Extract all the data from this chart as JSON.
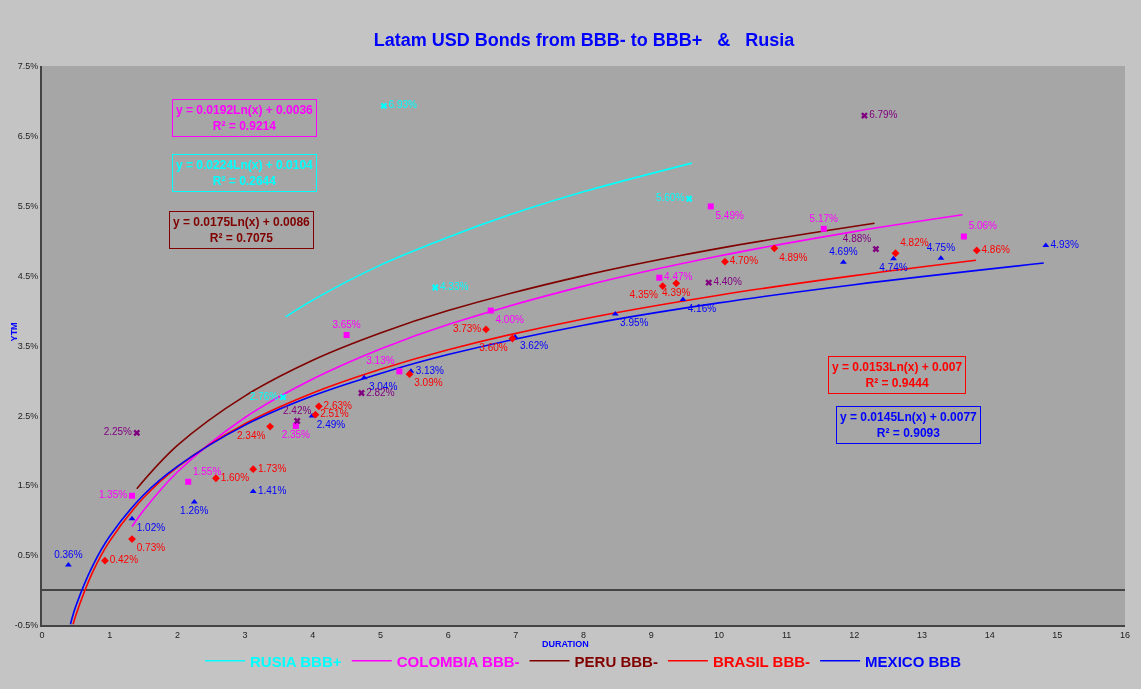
{
  "chart_data": {
    "type": "scatter",
    "title": "Latam USD Bonds from BBB- to BBB+   &   Rusia",
    "xlabel": "DURATION",
    "ylabel": "YTM",
    "xlim": [
      0,
      16
    ],
    "xticks": [
      0,
      1,
      2,
      3,
      4,
      5,
      6,
      7,
      8,
      9,
      10,
      11,
      12,
      13,
      14,
      15,
      16
    ],
    "ylim": [
      -0.5,
      7.5
    ],
    "yticks": [
      {
        "value": -0.5,
        "label": "-0.5%"
      },
      {
        "value": 0.5,
        "label": "0.5%"
      },
      {
        "value": 1.5,
        "label": "1.5%"
      },
      {
        "value": 2.5,
        "label": "2.5%"
      },
      {
        "value": 3.5,
        "label": "3.5%"
      },
      {
        "value": 4.5,
        "label": "4.5%"
      },
      {
        "value": 5.5,
        "label": "5.5%"
      },
      {
        "value": 6.5,
        "label": "6.5%"
      },
      {
        "value": 7.5,
        "label": "7.5%"
      }
    ],
    "grid": false,
    "legend": "bottom",
    "annotations": [
      "y = 0.0192Ln(x) + 0.0036\nR² = 0.9214",
      "y = 0.0224Ln(x) + 0.0104\nR² = 0.2644",
      "y = 0.0175Ln(x) + 0.0086\nR² = 0.7075",
      "y = 0.0153Ln(x) + 0.007\nR² = 0.9444",
      "y = 0.0145Ln(x) + 0.0077\nR² = 0.9093"
    ],
    "series": [
      {
        "name": "RUSIA BBB+",
        "type": "line",
        "color": "#00ffff",
        "marker": "none",
        "x": [
          3.6,
          4,
          5,
          6,
          7,
          8,
          9.6
        ],
        "values": [
          3.91,
          4.15,
          4.65,
          5.05,
          5.4,
          5.7,
          6.11
        ]
      },
      {
        "name": "COLOMBIA BBB-",
        "type": "line",
        "color": "#ff00ff",
        "marker": "none",
        "x": [
          1.33,
          1.5,
          2,
          3,
          4,
          5,
          6,
          8,
          10,
          12,
          13.6
        ],
        "values": [
          0.91,
          1.14,
          1.69,
          2.47,
          3.02,
          3.45,
          3.8,
          4.35,
          4.78,
          5.13,
          5.37
        ]
      },
      {
        "name": "PERU BBB-",
        "type": "line",
        "color": "#800000",
        "marker": "none",
        "x": [
          1.4,
          2,
          3,
          4,
          5,
          6,
          8,
          10,
          12.3
        ],
        "values": [
          1.45,
          2.07,
          2.78,
          3.29,
          3.68,
          4.0,
          4.5,
          4.89,
          5.25
        ]
      },
      {
        "name": "BRASIL BBB-",
        "type": "line",
        "color": "#ff0000",
        "marker": "none",
        "x": [
          0.46,
          0.5,
          0.75,
          1,
          1.5,
          2,
          3,
          4,
          5,
          6,
          8,
          10,
          12,
          13.8
        ],
        "values": [
          -0.49,
          -0.36,
          0.26,
          0.7,
          1.32,
          1.76,
          2.38,
          2.82,
          3.16,
          3.44,
          3.88,
          4.22,
          4.5,
          4.72
        ]
      },
      {
        "name": "MEXICO BBB",
        "type": "line",
        "color": "#0000ff",
        "marker": "none",
        "x": [
          0.42,
          0.5,
          0.75,
          1,
          1.5,
          2,
          3,
          4,
          5,
          6,
          8,
          10,
          12,
          14.8
        ],
        "values": [
          -0.49,
          -0.23,
          0.35,
          0.77,
          1.36,
          1.77,
          2.36,
          2.78,
          3.1,
          3.37,
          3.79,
          4.11,
          4.37,
          4.68
        ]
      },
      {
        "type": "scatter",
        "color": "#0000ff",
        "marker": "triangle",
        "x": [
          0.39,
          1.33,
          2.25,
          3.12,
          3.99,
          4.76,
          5.45,
          6.99,
          8.47,
          9.47,
          11.84,
          12.58,
          13.28,
          14.83
        ],
        "values": [
          0.36,
          1.02,
          1.26,
          1.41,
          2.49,
          3.04,
          3.13,
          3.62,
          3.95,
          4.16,
          4.69,
          4.74,
          4.75,
          4.93
        ],
        "value_labels": [
          "0.36%",
          "1.02%",
          "1.26%",
          "1.41%",
          "2.49%",
          "3.04%",
          "3.13%",
          "3.62%",
          "3.95%",
          "4.16%",
          "4.69%",
          "4.74%",
          "4.75%",
          "4.93%"
        ]
      },
      {
        "type": "scatter",
        "color": "#ff0000",
        "marker": "diamond",
        "x": [
          0.93,
          1.33,
          2.57,
          3.12,
          3.37,
          4.04,
          4.09,
          5.43,
          6.95,
          6.56,
          9.17,
          9.37,
          10.09,
          10.82,
          12.61,
          13.81
        ],
        "values": [
          0.42,
          0.73,
          1.6,
          1.73,
          2.34,
          2.51,
          2.63,
          3.09,
          3.6,
          3.73,
          4.35,
          4.39,
          4.7,
          4.89,
          4.82,
          4.86
        ],
        "value_labels": [
          "0.42%",
          "0.73%",
          "1.60%",
          "1.73%",
          "2.34%",
          "2.51%",
          "2.63%",
          "3.09%",
          "3.60%",
          "3.73%",
          "4.35%",
          "4.39%",
          "4.70%",
          "4.89%",
          "4.82%",
          "4.86%"
        ]
      },
      {
        "type": "scatter",
        "color": "#ff00ff",
        "marker": "square",
        "x": [
          1.33,
          2.16,
          3.75,
          5.28,
          4.5,
          6.63,
          9.12,
          9.88,
          11.55,
          13.62
        ],
        "values": [
          1.35,
          1.55,
          2.35,
          3.13,
          3.65,
          4.0,
          4.47,
          5.49,
          5.17,
          5.06
        ],
        "value_labels": [
          "1.35%",
          "1.55%",
          "2.35%",
          "3.13%",
          "3.65%",
          "4.00%",
          "4.47%",
          "5.49%",
          "5.17%",
          "5.06%"
        ]
      },
      {
        "type": "scatter",
        "color": "#800080",
        "marker": "cross",
        "x": [
          1.4,
          3.77,
          4.72,
          9.85,
          12.32,
          12.15
        ],
        "values": [
          2.25,
          2.42,
          2.82,
          4.4,
          4.88,
          6.79
        ],
        "value_labels": [
          "2.25%",
          "2.42%",
          "2.82%",
          "4.40%",
          "4.88%",
          "6.79%"
        ]
      },
      {
        "type": "scatter",
        "color": "#00ffff",
        "marker": "cross",
        "x": [
          3.56,
          5.81,
          9.56,
          5.05
        ],
        "values": [
          2.76,
          4.33,
          5.6,
          6.93
        ],
        "value_labels": [
          "2.76%",
          "4.33%",
          "5.60%",
          "6.93%"
        ]
      }
    ]
  }
}
